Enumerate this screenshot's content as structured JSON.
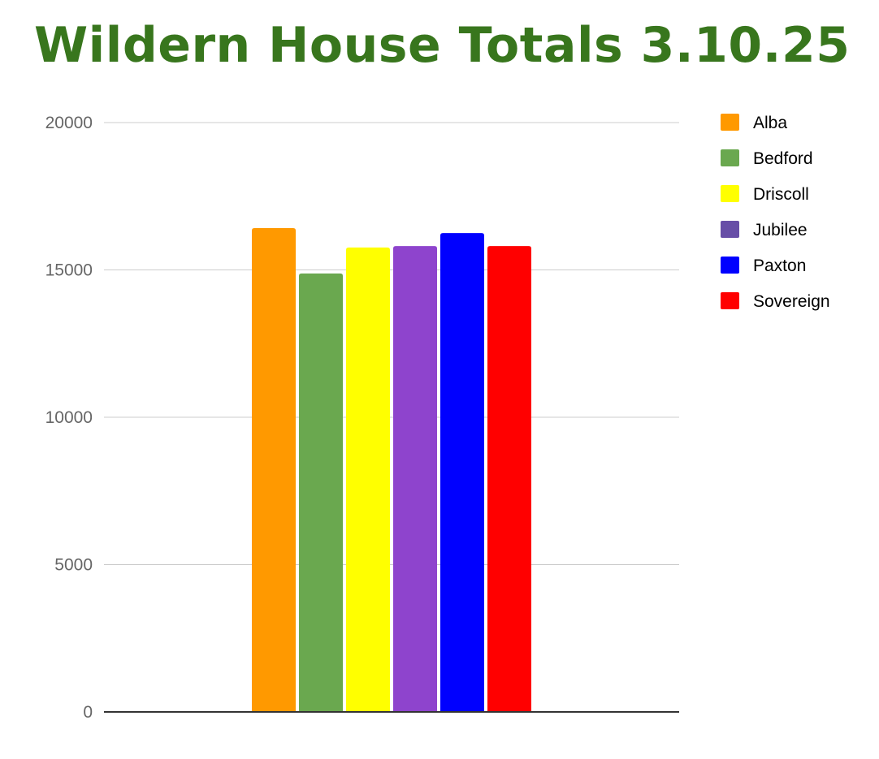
{
  "chart_data": {
    "type": "bar",
    "title": "Wildern House Totals 3.10.25",
    "xlabel": "",
    "ylabel": "",
    "ylim": [
      0,
      20000
    ],
    "yticks": [
      "0",
      "5000",
      "10000",
      "15000",
      "20000"
    ],
    "grid": true,
    "legend_position": "right",
    "series": [
      {
        "name": "Alba",
        "value": 16420,
        "color": "#ff9900"
      },
      {
        "name": "Bedford",
        "value": 14880,
        "color": "#6aa84f"
      },
      {
        "name": "Driscoll",
        "value": 15760,
        "color": "#ffff00"
      },
      {
        "name": "Jubilee",
        "value": 15810,
        "color": "#8e44cd"
      },
      {
        "name": "Paxton",
        "value": 16250,
        "color": "#0000ff"
      },
      {
        "name": "Sovereign",
        "value": 15810,
        "color": "#ff0000"
      }
    ],
    "title_color": "#38761d",
    "legend_swatch_jubilee": "#674ea7"
  }
}
